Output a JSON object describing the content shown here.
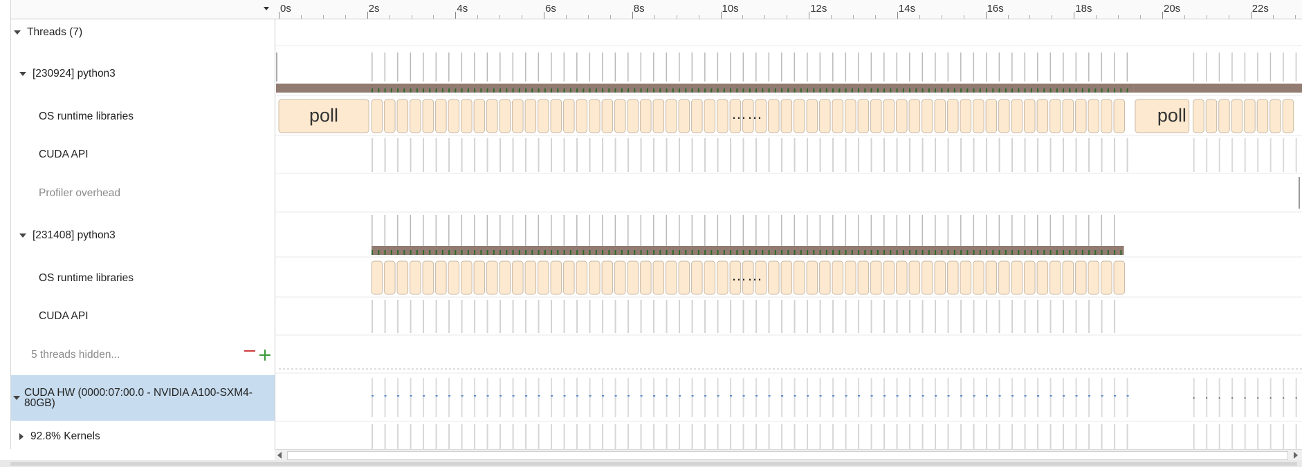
{
  "tree": {
    "rows": [
      {
        "key": "threads",
        "label": "Threads (7)"
      },
      {
        "key": "t1",
        "label": "[230924] python3"
      },
      {
        "key": "t1_os",
        "label": "OS runtime libraries"
      },
      {
        "key": "t1_cuda",
        "label": "CUDA API"
      },
      {
        "key": "t1_prof",
        "label": "Profiler overhead"
      },
      {
        "key": "t2",
        "label": "[231408] python3"
      },
      {
        "key": "t2_os",
        "label": "OS runtime libraries"
      },
      {
        "key": "t2_cuda",
        "label": "CUDA API"
      },
      {
        "key": "hidden",
        "label": "5 threads hidden..."
      },
      {
        "key": "cudahw",
        "label": "CUDA HW (0000:07:00.0 - NVIDIA A100-SXM4-80GB)"
      },
      {
        "key": "kernels",
        "label": "92.8% Kernels"
      }
    ]
  },
  "ruler": {
    "unit": "s",
    "labels": [
      "0s",
      "2s",
      "4s",
      "6s",
      "8s",
      "10s",
      "12s",
      "14s",
      "16s",
      "18s",
      "20s",
      "22s"
    ]
  },
  "timeline": {
    "poll_label": "poll",
    "ellipsis": "…",
    "thread1_active_start_s": 2.1,
    "thread1_active_end_s": 19.2,
    "thread2_active_start_s": 2.1,
    "thread2_active_end_s": 19.1
  },
  "colors": {
    "selected_row": "#c7dcee",
    "os_block": "#fde9cf",
    "thread_bar": "#927b70",
    "minus": "#d23a3a",
    "plus": "#3a9a3a"
  },
  "icons": [
    "expand-caret-icon",
    "collapse-caret-icon",
    "minus-icon",
    "plus-icon",
    "dropdown-icon"
  ]
}
